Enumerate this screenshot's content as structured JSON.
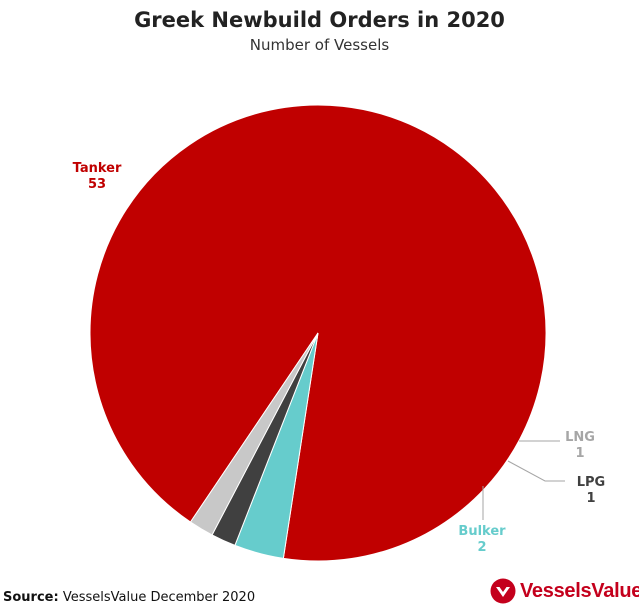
{
  "chart_data": {
    "type": "pie",
    "title": "Greek Newbuild Orders in 2020",
    "subtitle": "Number of Vessels",
    "slices": [
      {
        "label": "Tanker",
        "value": 53,
        "color": "#c00000",
        "label_color": "#c00000"
      },
      {
        "label": "Bulker",
        "value": 2,
        "color": "#66cccc",
        "label_color": "#66cccc"
      },
      {
        "label": "LPG",
        "value": 1,
        "color": "#404040",
        "label_color": "#404040"
      },
      {
        "label": "LNG",
        "value": 1,
        "color": "#c8c8c8",
        "label_color": "#a6a6a6"
      }
    ]
  },
  "footer": {
    "source_label": "Source:",
    "source_text": "VesselsValue December 2020",
    "logo_text": "VesselsValue"
  },
  "colors": {
    "brand": "#c4001c"
  }
}
